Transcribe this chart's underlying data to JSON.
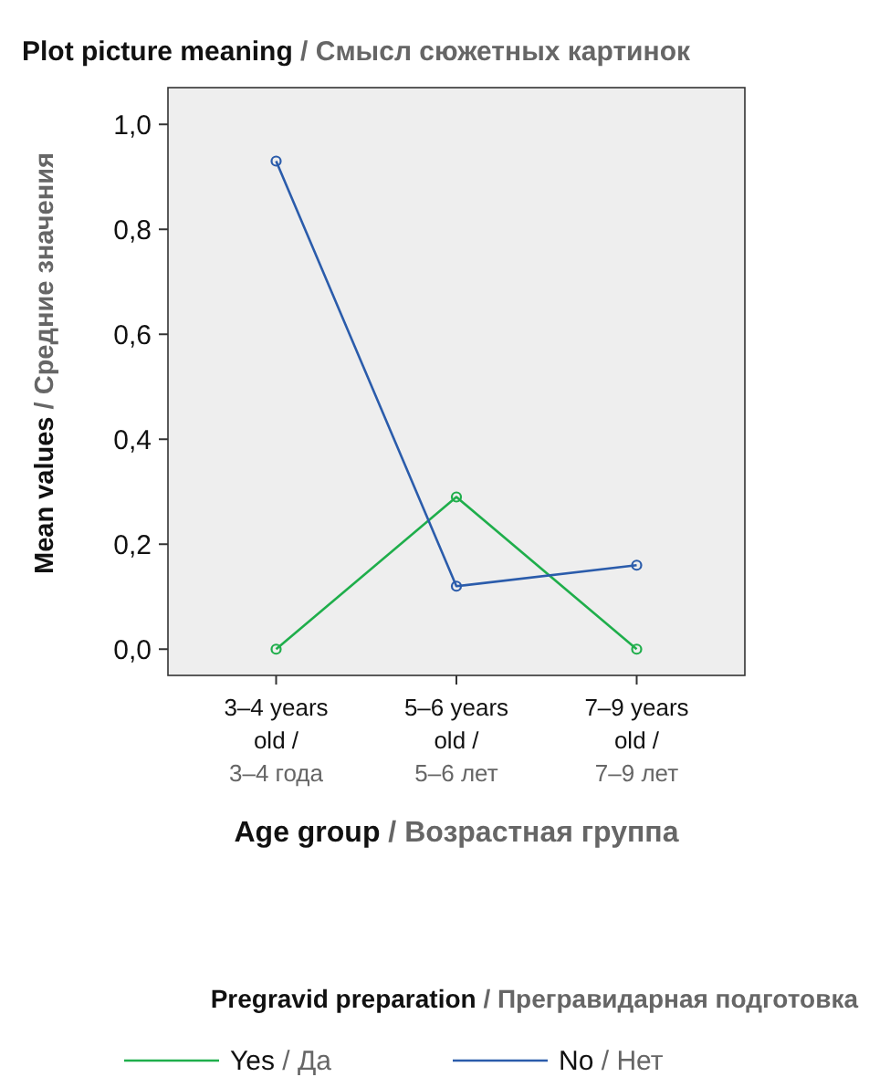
{
  "chart_data": {
    "type": "line",
    "title": "Plot picture meaning / Смысл сюжетных картинок",
    "xlabel": "Age group / Возрастная группа",
    "ylabel": "Mean values / Средние значения",
    "legend_title": "Pregravid preparation / Прегравидарная подготовка",
    "categories": [
      "3–4 years old / 3–4 года",
      "5–6 years old / 5–6 лет",
      "7–9 years old / 7–9 лет"
    ],
    "series": [
      {
        "name": "Yes / Да",
        "color": "#1fae4b",
        "values": [
          0,
          0.29,
          0
        ]
      },
      {
        "name": "No / Нет",
        "color": "#2b5cab",
        "values": [
          0.93,
          0.12,
          0.16
        ]
      }
    ],
    "ylim": [
      -0.05,
      1.07
    ],
    "yticks": [
      {
        "value": 0,
        "label": "0,0"
      },
      {
        "value": 0.2,
        "label": "0,2"
      },
      {
        "value": 0.4,
        "label": "0,4"
      },
      {
        "value": 0.6,
        "label": "0,6"
      },
      {
        "value": 0.8,
        "label": "0,8"
      },
      {
        "value": 1,
        "label": "1,0"
      }
    ],
    "marker": "circle",
    "legend": "bottom",
    "grid": false
  }
}
